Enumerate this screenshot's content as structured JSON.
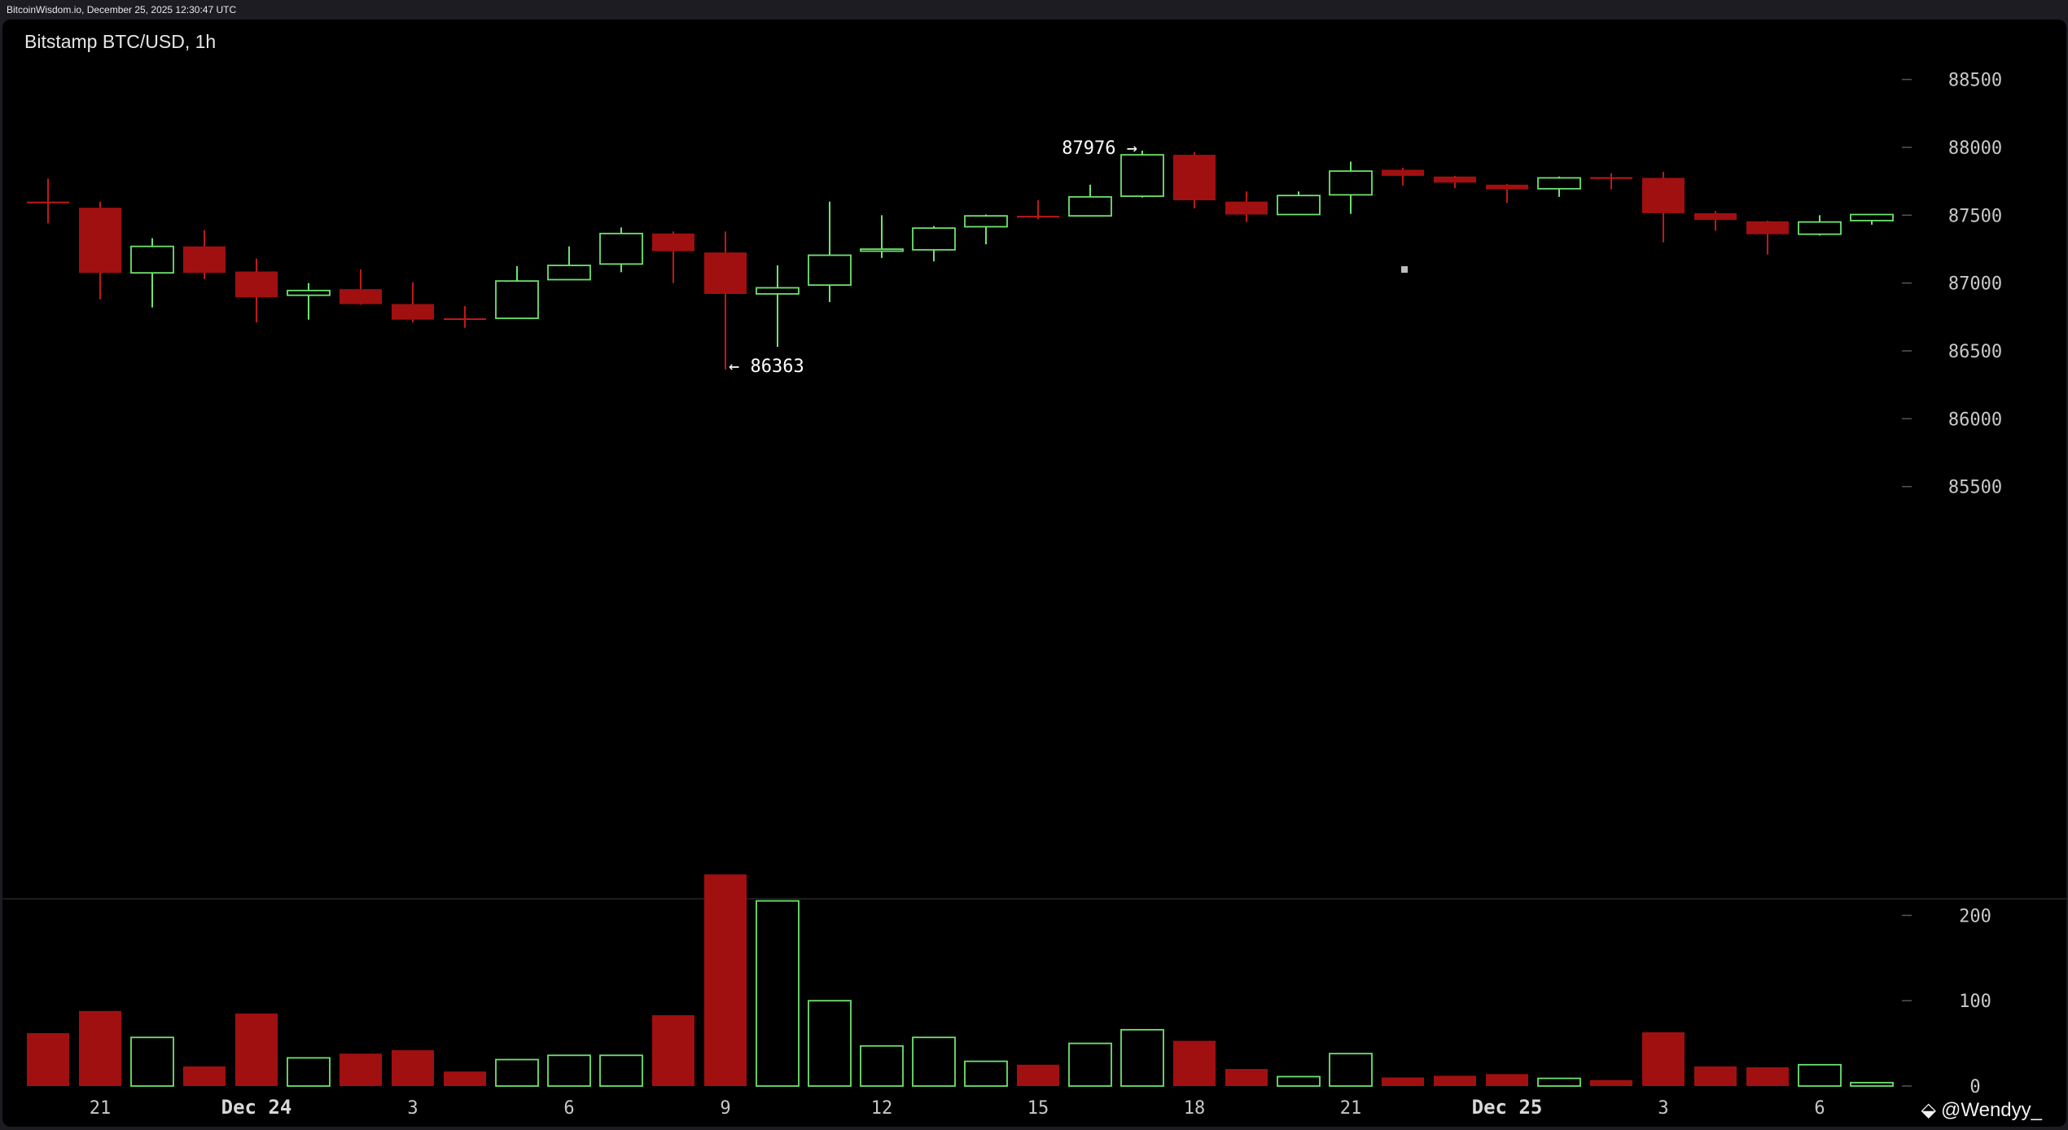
{
  "header": {
    "source_line": "BitcoinWisdom.io, December 25, 2025 12:30:47 UTC",
    "chart_title": "Bitstamp BTC/USD, 1h"
  },
  "watermark": {
    "icon": "diamond-logo-icon",
    "text": "@Wendyy_"
  },
  "colors": {
    "up": "#6ee36e",
    "down": "#a01010",
    "background": "#000000",
    "axis_text": "#c8c8c8",
    "frame": "#1c1c22"
  },
  "chart_data": [
    {
      "type": "candlestick",
      "title": "Bitstamp BTC/USD, 1h",
      "ylim": [
        85000,
        88750
      ],
      "yticks": [
        85500,
        86000,
        86500,
        87000,
        87500,
        88000,
        88500
      ],
      "x_tick_labels": [
        {
          "index": 1,
          "label": "21"
        },
        {
          "index": 4,
          "label": "Dec 24"
        },
        {
          "index": 7,
          "label": "3"
        },
        {
          "index": 10,
          "label": "6"
        },
        {
          "index": 13,
          "label": "9"
        },
        {
          "index": 16,
          "label": "12"
        },
        {
          "index": 19,
          "label": "15"
        },
        {
          "index": 22,
          "label": "18"
        },
        {
          "index": 25,
          "label": "21"
        },
        {
          "index": 28,
          "label": "Dec 25"
        },
        {
          "index": 31,
          "label": "3"
        },
        {
          "index": 34,
          "label": "6"
        }
      ],
      "candles": [
        {
          "open": 87600,
          "high": 87770,
          "low": 87440,
          "close": 87600
        },
        {
          "open": 87555,
          "high": 87600,
          "low": 86880,
          "close": 87075
        },
        {
          "open": 87075,
          "high": 87330,
          "low": 86820,
          "close": 87270
        },
        {
          "open": 87270,
          "high": 87390,
          "low": 87030,
          "close": 87075
        },
        {
          "open": 87085,
          "high": 87180,
          "low": 86710,
          "close": 86895
        },
        {
          "open": 86910,
          "high": 87000,
          "low": 86730,
          "close": 86945
        },
        {
          "open": 86955,
          "high": 87100,
          "low": 86840,
          "close": 86845
        },
        {
          "open": 86845,
          "high": 87005,
          "low": 86710,
          "close": 86730
        },
        {
          "open": 86740,
          "high": 86830,
          "low": 86670,
          "close": 86740
        },
        {
          "open": 86740,
          "high": 87125,
          "low": 86740,
          "close": 87015
        },
        {
          "open": 87025,
          "high": 87270,
          "low": 87025,
          "close": 87130
        },
        {
          "open": 87140,
          "high": 87410,
          "low": 87080,
          "close": 87365
        },
        {
          "open": 87365,
          "high": 87380,
          "low": 87000,
          "close": 87235
        },
        {
          "open": 87225,
          "high": 87380,
          "low": 86363,
          "close": 86920
        },
        {
          "open": 86920,
          "high": 87130,
          "low": 86530,
          "close": 86965
        },
        {
          "open": 86985,
          "high": 87600,
          "low": 86860,
          "close": 87205
        },
        {
          "open": 87235,
          "high": 87500,
          "low": 87185,
          "close": 87250
        },
        {
          "open": 87245,
          "high": 87420,
          "low": 87160,
          "close": 87405
        },
        {
          "open": 87415,
          "high": 87505,
          "low": 87285,
          "close": 87495
        },
        {
          "open": 87495,
          "high": 87610,
          "low": 87470,
          "close": 87495
        },
        {
          "open": 87495,
          "high": 87725,
          "low": 87495,
          "close": 87635
        },
        {
          "open": 87640,
          "high": 87976,
          "low": 87630,
          "close": 87945
        },
        {
          "open": 87945,
          "high": 87965,
          "low": 87550,
          "close": 87610
        },
        {
          "open": 87600,
          "high": 87675,
          "low": 87450,
          "close": 87505
        },
        {
          "open": 87505,
          "high": 87675,
          "low": 87505,
          "close": 87645
        },
        {
          "open": 87650,
          "high": 87895,
          "low": 87510,
          "close": 87825
        },
        {
          "open": 87835,
          "high": 87850,
          "low": 87720,
          "close": 87790
        },
        {
          "open": 87785,
          "high": 87790,
          "low": 87700,
          "close": 87740
        },
        {
          "open": 87725,
          "high": 87730,
          "low": 87590,
          "close": 87690
        },
        {
          "open": 87695,
          "high": 87785,
          "low": 87635,
          "close": 87775
        },
        {
          "open": 87780,
          "high": 87810,
          "low": 87690,
          "close": 87780
        },
        {
          "open": 87775,
          "high": 87820,
          "low": 87300,
          "close": 87515
        },
        {
          "open": 87515,
          "high": 87530,
          "low": 87385,
          "close": 87465
        },
        {
          "open": 87455,
          "high": 87460,
          "low": 87210,
          "close": 87360
        },
        {
          "open": 87360,
          "high": 87500,
          "low": 87350,
          "close": 87450
        },
        {
          "open": 87460,
          "high": 87510,
          "low": 87430,
          "close": 87505
        }
      ],
      "annotations": [
        {
          "text": "87976 →",
          "candle_index": 21,
          "price": 87976
        },
        {
          "text": "← 86363",
          "candle_index": 13,
          "price": 86363
        }
      ]
    },
    {
      "type": "bar",
      "title": "",
      "ylim": [
        0,
        250
      ],
      "yticks": [
        0,
        100,
        200
      ],
      "volume": [
        62,
        88,
        57,
        23,
        85,
        33,
        38,
        42,
        17,
        31,
        36,
        36,
        83,
        248,
        217,
        100,
        47,
        57,
        29,
        25,
        50,
        66,
        53,
        20,
        11,
        38,
        10,
        12,
        14,
        9,
        7,
        63,
        23,
        22,
        25,
        4
      ]
    }
  ]
}
